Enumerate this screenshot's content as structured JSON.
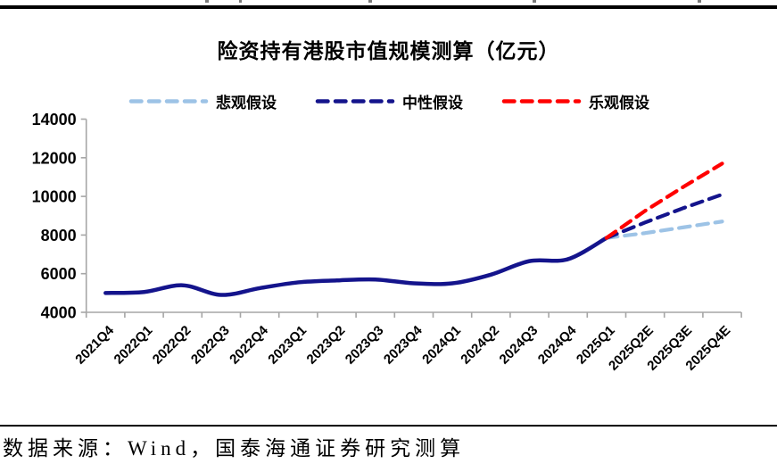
{
  "title": "险资持有港股市值规模测算（亿元）",
  "footer": {
    "source": "数据来源：Wind，国泰海通证券研究测算"
  },
  "colors": {
    "axis": "#A6A6A6",
    "text": "#000000",
    "pessimistic": "#9DC3E6",
    "neutral": "#14148C",
    "optimistic": "#FF0000"
  },
  "chart_data": {
    "type": "line",
    "title": "险资持有港股市值规模测算（亿元）",
    "categories": [
      "2021Q4",
      "2022Q1",
      "2022Q2",
      "2022Q3",
      "2022Q4",
      "2023Q1",
      "2023Q2",
      "2023Q3",
      "2023Q4",
      "2024Q1",
      "2024Q2",
      "2024Q3",
      "2024Q4",
      "2025Q1",
      "2025Q2E",
      "2025Q3E",
      "2025Q4E"
    ],
    "y_ticks": [
      4000,
      6000,
      8000,
      10000,
      12000,
      14000
    ],
    "ylim": [
      4000,
      14000
    ],
    "grid": false,
    "legend_position": "top",
    "legend": [
      {
        "label": "悲观假设",
        "color": "#9DC3E6"
      },
      {
        "label": "中性假设",
        "color": "#14148C"
      },
      {
        "label": "乐观假设",
        "color": "#FF0000"
      }
    ],
    "series": [
      {
        "key": "historical",
        "label": "",
        "style": "solid",
        "color": "#14148C",
        "start_index": 0,
        "values": [
          5000,
          5050,
          5400,
          4900,
          5250,
          5550,
          5650,
          5700,
          5500,
          5500,
          5950,
          6650,
          6750,
          7850
        ]
      },
      {
        "key": "pessimistic",
        "label": "悲观假设",
        "style": "dashed",
        "color": "#9DC3E6",
        "start_index": 13,
        "values": [
          7850,
          8100,
          8400,
          8700
        ]
      },
      {
        "key": "neutral",
        "label": "中性假设",
        "style": "dashed",
        "color": "#14148C",
        "start_index": 13,
        "values": [
          7850,
          8650,
          9400,
          10100
        ]
      },
      {
        "key": "optimistic",
        "label": "乐观假设",
        "style": "dashed",
        "color": "#FF0000",
        "start_index": 13,
        "values": [
          7850,
          9250,
          10500,
          11700
        ]
      }
    ]
  }
}
